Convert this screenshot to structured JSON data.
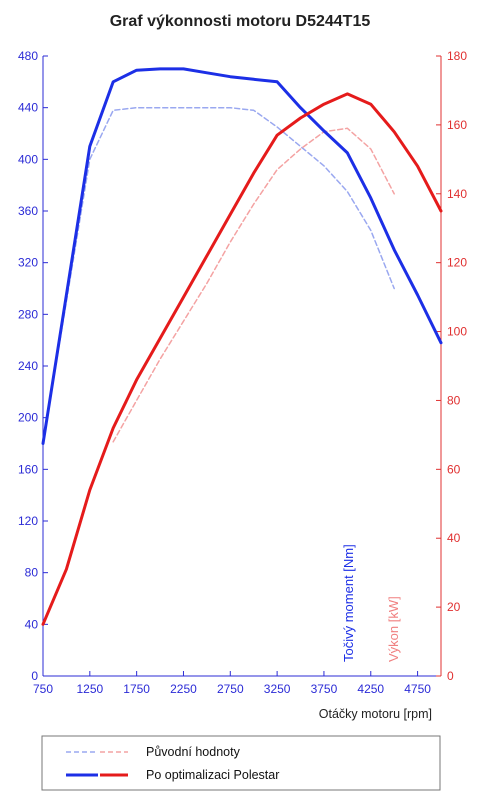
{
  "chart_data": {
    "type": "line",
    "title": "Graf výkonnosti motoru D5244T15",
    "xlabel": "Otáčky motoru [rpm]",
    "ylabel_left": "Točivý moment [Nm]",
    "ylabel_right": "Výkon [kW]",
    "x_ticks": [
      "750",
      "1250",
      "1750",
      "2250",
      "2750",
      "3250",
      "3750",
      "4250",
      "4750"
    ],
    "y_left_ticks": [
      "0",
      "40",
      "80",
      "120",
      "160",
      "200",
      "240",
      "280",
      "320",
      "360",
      "400",
      "440",
      "480"
    ],
    "y_right_ticks": [
      "0",
      "20",
      "40",
      "60",
      "80",
      "100",
      "120",
      "140",
      "160",
      "180"
    ],
    "xlim": [
      750,
      5000
    ],
    "ylim_left": [
      0,
      480
    ],
    "ylim_right": [
      0,
      180
    ],
    "grid": false,
    "legend_position": "bottom",
    "legend": {
      "original_label": "Původní hodnoty",
      "optimized_label": "Po optimalizaci Polestar"
    },
    "colors": {
      "torque": "#1c2fe6",
      "torque_original": "#9aa8f0",
      "power": "#e51b1b",
      "power_original": "#f4a3a3"
    },
    "series": [
      {
        "axis": "left",
        "style": "solid",
        "x": [
          750,
          1250,
          1500,
          1750,
          2000,
          2250,
          2500,
          2750,
          3000,
          3250,
          3500,
          3750,
          4000,
          4250,
          4500,
          4750,
          5000
        ],
        "values": [
          180,
          410,
          460,
          469,
          470,
          470,
          467,
          464,
          462,
          460,
          440,
          422,
          405,
          370,
          330,
          295,
          258
        ]
      },
      {
        "axis": "left",
        "style": "dashed",
        "x": [
          750,
          1250,
          1500,
          1750,
          2000,
          2250,
          2500,
          2750,
          3000,
          3250,
          3500,
          3750,
          4000,
          4250,
          4500
        ],
        "values": [
          180,
          400,
          438,
          440,
          440,
          440,
          440,
          440,
          438,
          425,
          410,
          395,
          375,
          345,
          300
        ]
      },
      {
        "axis": "right",
        "style": "solid",
        "x": [
          750,
          1000,
          1250,
          1500,
          1750,
          2000,
          2250,
          2500,
          2750,
          3000,
          3250,
          3500,
          3750,
          4000,
          4250,
          4500,
          4750,
          5000
        ],
        "values": [
          15,
          31,
          54,
          72,
          86,
          98,
          110,
          122,
          134,
          146,
          157,
          162,
          166,
          169,
          166,
          158,
          148,
          135
        ]
      },
      {
        "axis": "right",
        "style": "dashed",
        "x": [
          1500,
          1750,
          2000,
          2250,
          2500,
          2750,
          3000,
          3250,
          3500,
          3750,
          4000,
          4250,
          4500
        ],
        "values": [
          68,
          80,
          92,
          103,
          114,
          126,
          137,
          147,
          153,
          158,
          159,
          153,
          140
        ]
      }
    ]
  }
}
